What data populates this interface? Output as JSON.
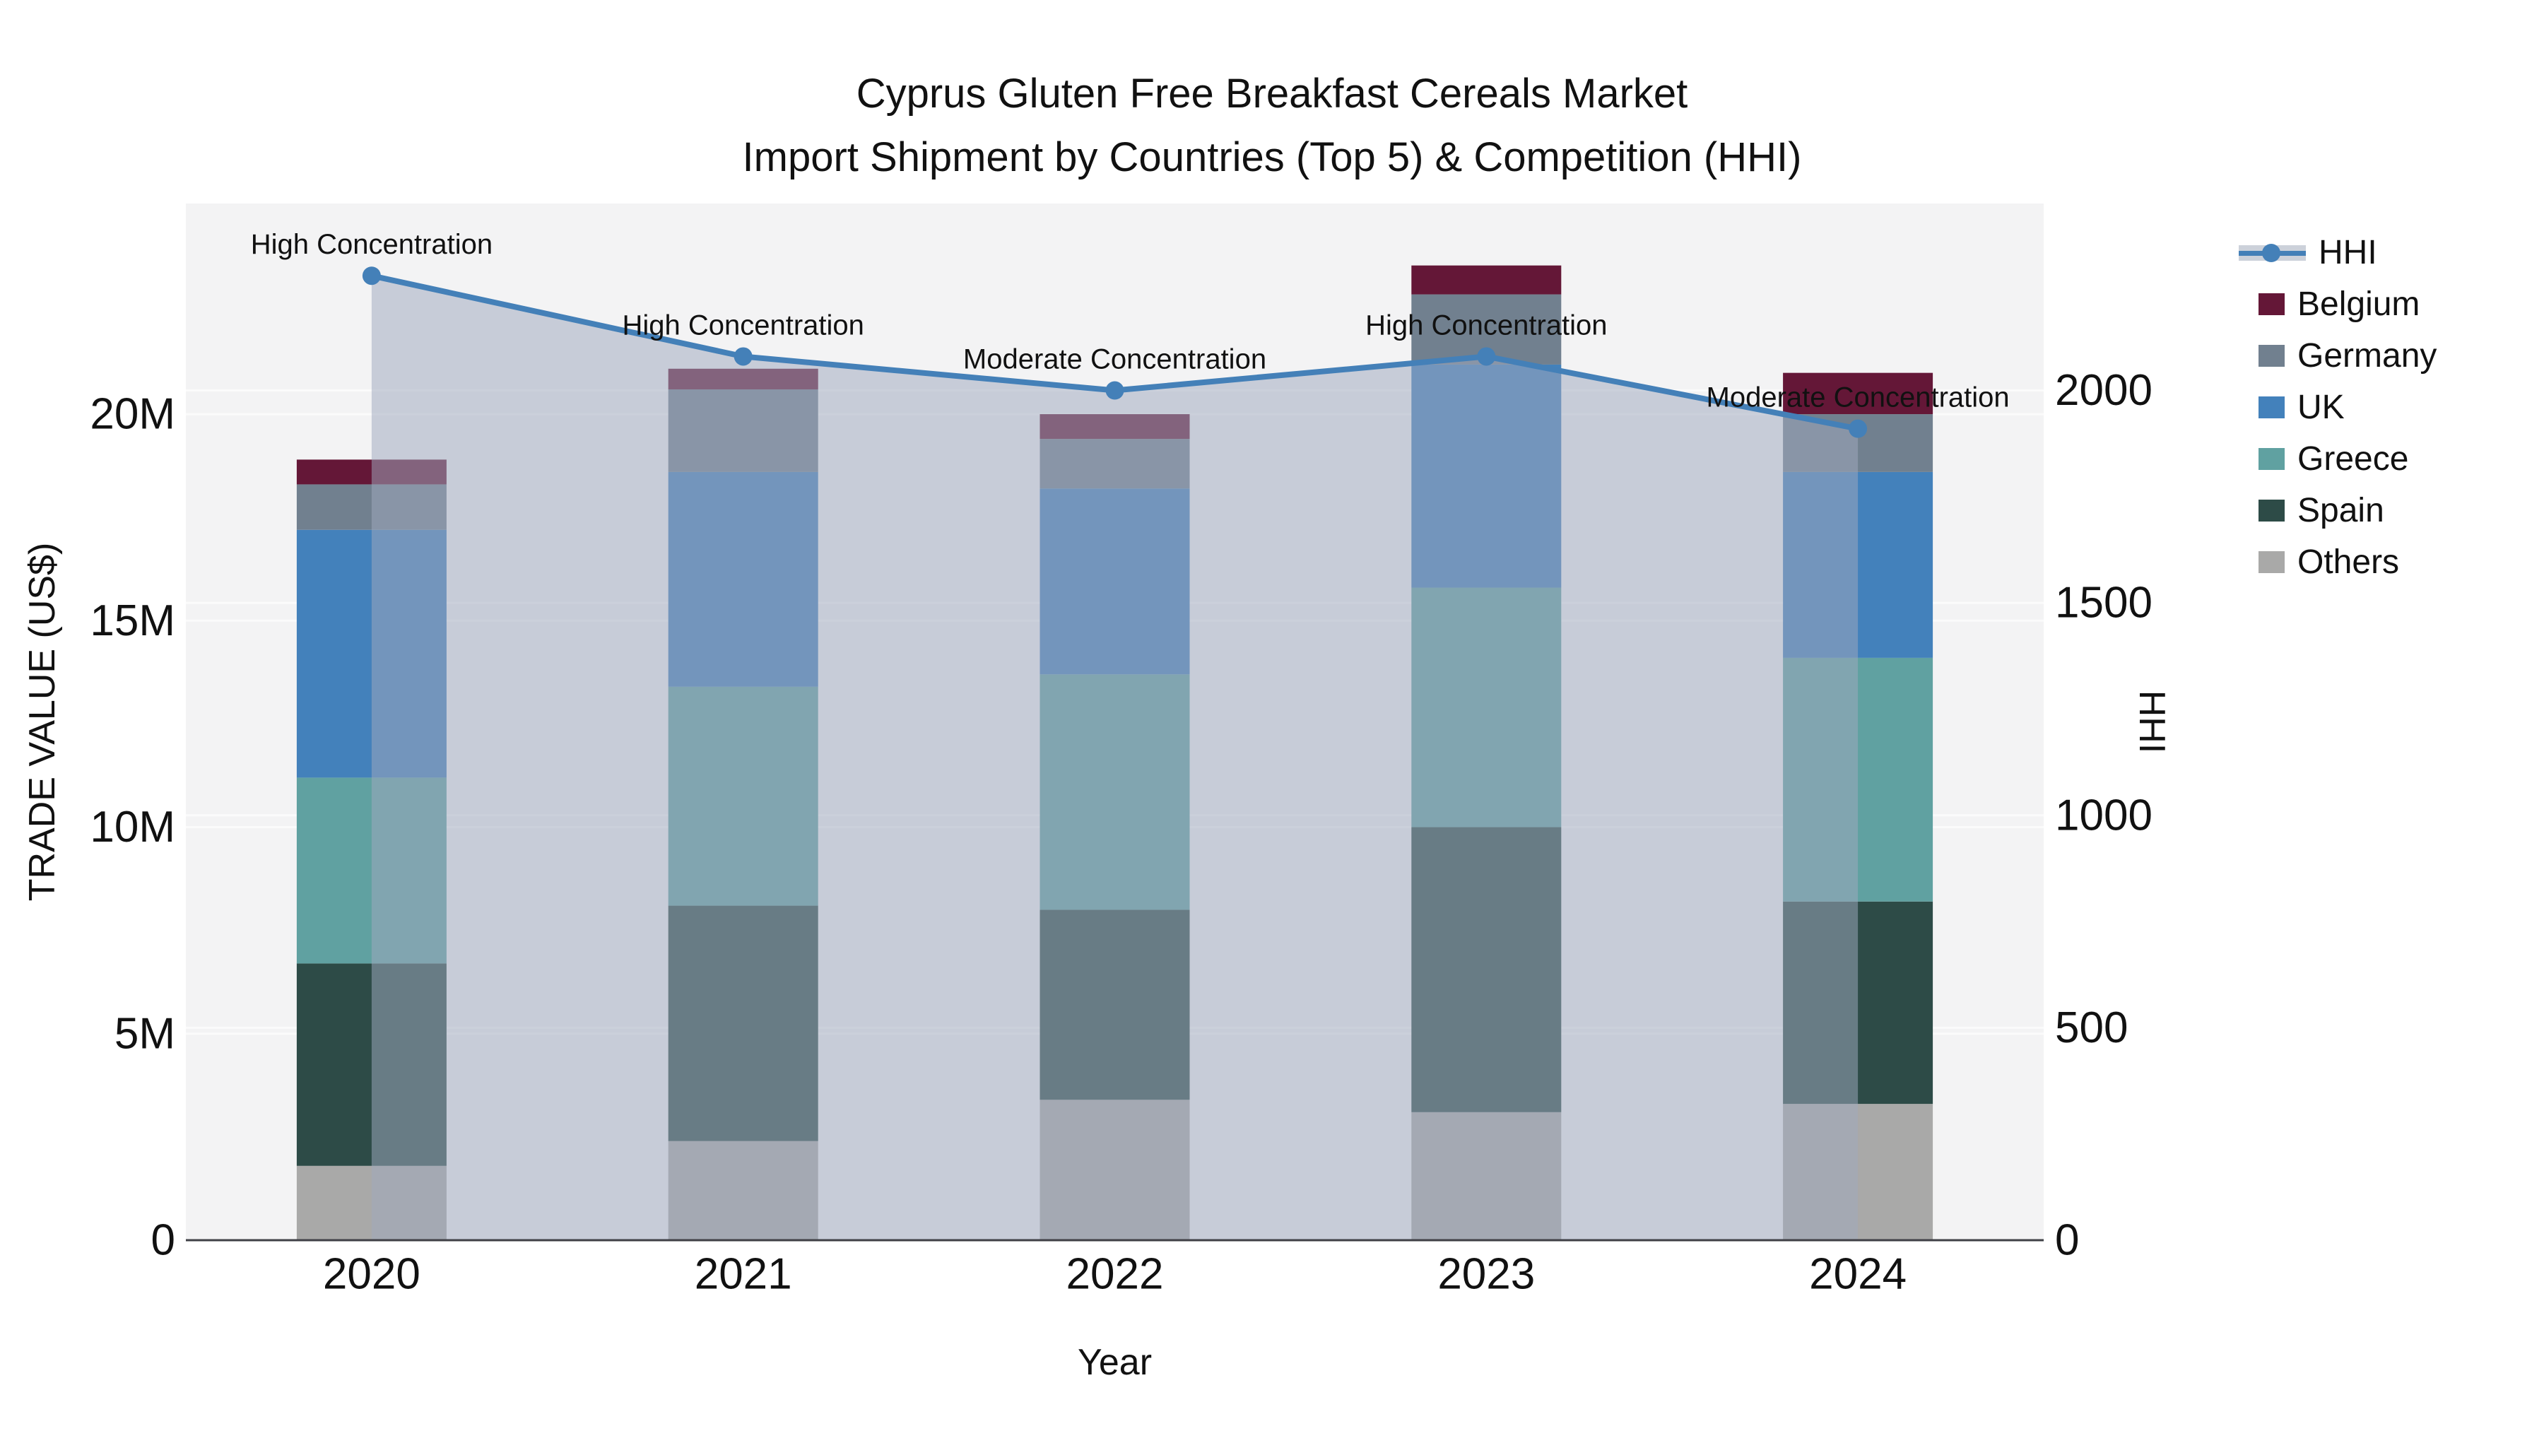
{
  "title": {
    "line1": "Cyprus Gluten Free Breakfast Cereals Market",
    "line2": "Import Shipment by Countries (Top 5) & Competition (HHI)"
  },
  "axes": {
    "x_title": "Year",
    "y_left_title": "TRADE VALUE (US$)",
    "y_right_title": "HHI",
    "x_tick_labels": [
      "2020",
      "2021",
      "2022",
      "2023",
      "2024"
    ],
    "y_left_ticks": [
      {
        "value": 0,
        "label": "0"
      },
      {
        "value": 5,
        "label": "5M"
      },
      {
        "value": 10,
        "label": "10M"
      },
      {
        "value": 15,
        "label": "15M"
      },
      {
        "value": 20,
        "label": "20M"
      }
    ],
    "y_right_ticks": [
      {
        "value": 0,
        "label": "0"
      },
      {
        "value": 500,
        "label": "500"
      },
      {
        "value": 1000,
        "label": "1000"
      },
      {
        "value": 1500,
        "label": "1500"
      },
      {
        "value": 2000,
        "label": "2000"
      }
    ],
    "y_left_range_millions": [
      0,
      25.1
    ],
    "y_right_range": [
      0,
      2440
    ]
  },
  "chart_data": {
    "type": "combo: stacked bar (trade value, left axis, US$ millions) + line with area (HHI, right axis)",
    "categories": [
      "2020",
      "2021",
      "2022",
      "2023",
      "2024"
    ],
    "bar_series_bottom_to_top": [
      {
        "name": "Others",
        "color": "#a9a9a8",
        "values_millions": [
          1.8,
          2.4,
          3.4,
          3.1,
          3.3
        ]
      },
      {
        "name": "Spain",
        "color": "#2d4b47",
        "values_millions": [
          4.9,
          5.7,
          4.6,
          6.9,
          4.9
        ]
      },
      {
        "name": "Greece",
        "color": "#60a1a1",
        "values_millions": [
          4.5,
          5.3,
          5.7,
          5.8,
          5.9
        ]
      },
      {
        "name": "UK",
        "color": "#4381bb",
        "values_millions": [
          6.0,
          5.2,
          4.5,
          5.4,
          4.5
        ]
      },
      {
        "name": "Germany",
        "color": "#71808f",
        "values_millions": [
          1.1,
          2.0,
          1.2,
          1.7,
          1.4
        ]
      },
      {
        "name": "Belgium",
        "color": "#641737",
        "values_millions": [
          0.6,
          0.5,
          0.6,
          0.7,
          1.0
        ]
      }
    ],
    "bar_totals_millions": [
      18.9,
      21.1,
      20.0,
      23.6,
      21.0
    ],
    "line_series": {
      "name": "HHI",
      "color": "#4480b8",
      "area_color": "rgba(159,168,189,0.52)",
      "values": [
        2270,
        2080,
        2000,
        2080,
        1910
      ]
    },
    "annotations": [
      {
        "category": "2020",
        "text": "High Concentration"
      },
      {
        "category": "2021",
        "text": "High Concentration"
      },
      {
        "category": "2022",
        "text": "Moderate Concentration"
      },
      {
        "category": "2023",
        "text": "High Concentration"
      },
      {
        "category": "2024",
        "text": "Moderate Concentration"
      }
    ],
    "legend_position": "right",
    "grid": "both y-axes, light lines on light-gray plot background"
  },
  "legend": {
    "items": [
      {
        "label": "HHI",
        "type": "line",
        "color": "#4480b8",
        "band_color": "#ccd1da"
      },
      {
        "label": "Belgium",
        "type": "swatch",
        "color": "#641737"
      },
      {
        "label": "Germany",
        "type": "swatch",
        "color": "#71808f"
      },
      {
        "label": "UK",
        "type": "swatch",
        "color": "#4381bb"
      },
      {
        "label": "Greece",
        "type": "swatch",
        "color": "#60a1a1"
      },
      {
        "label": "Spain",
        "type": "swatch",
        "color": "#2d4b47"
      },
      {
        "label": "Others",
        "type": "swatch",
        "color": "#a9a9a8"
      }
    ]
  },
  "colors": {
    "figure_bg": "#ffffff",
    "plot_bg": "#f3f3f4",
    "gridline": "#fbfbfb",
    "axis_line": "#3f4046",
    "text": "#111111"
  }
}
